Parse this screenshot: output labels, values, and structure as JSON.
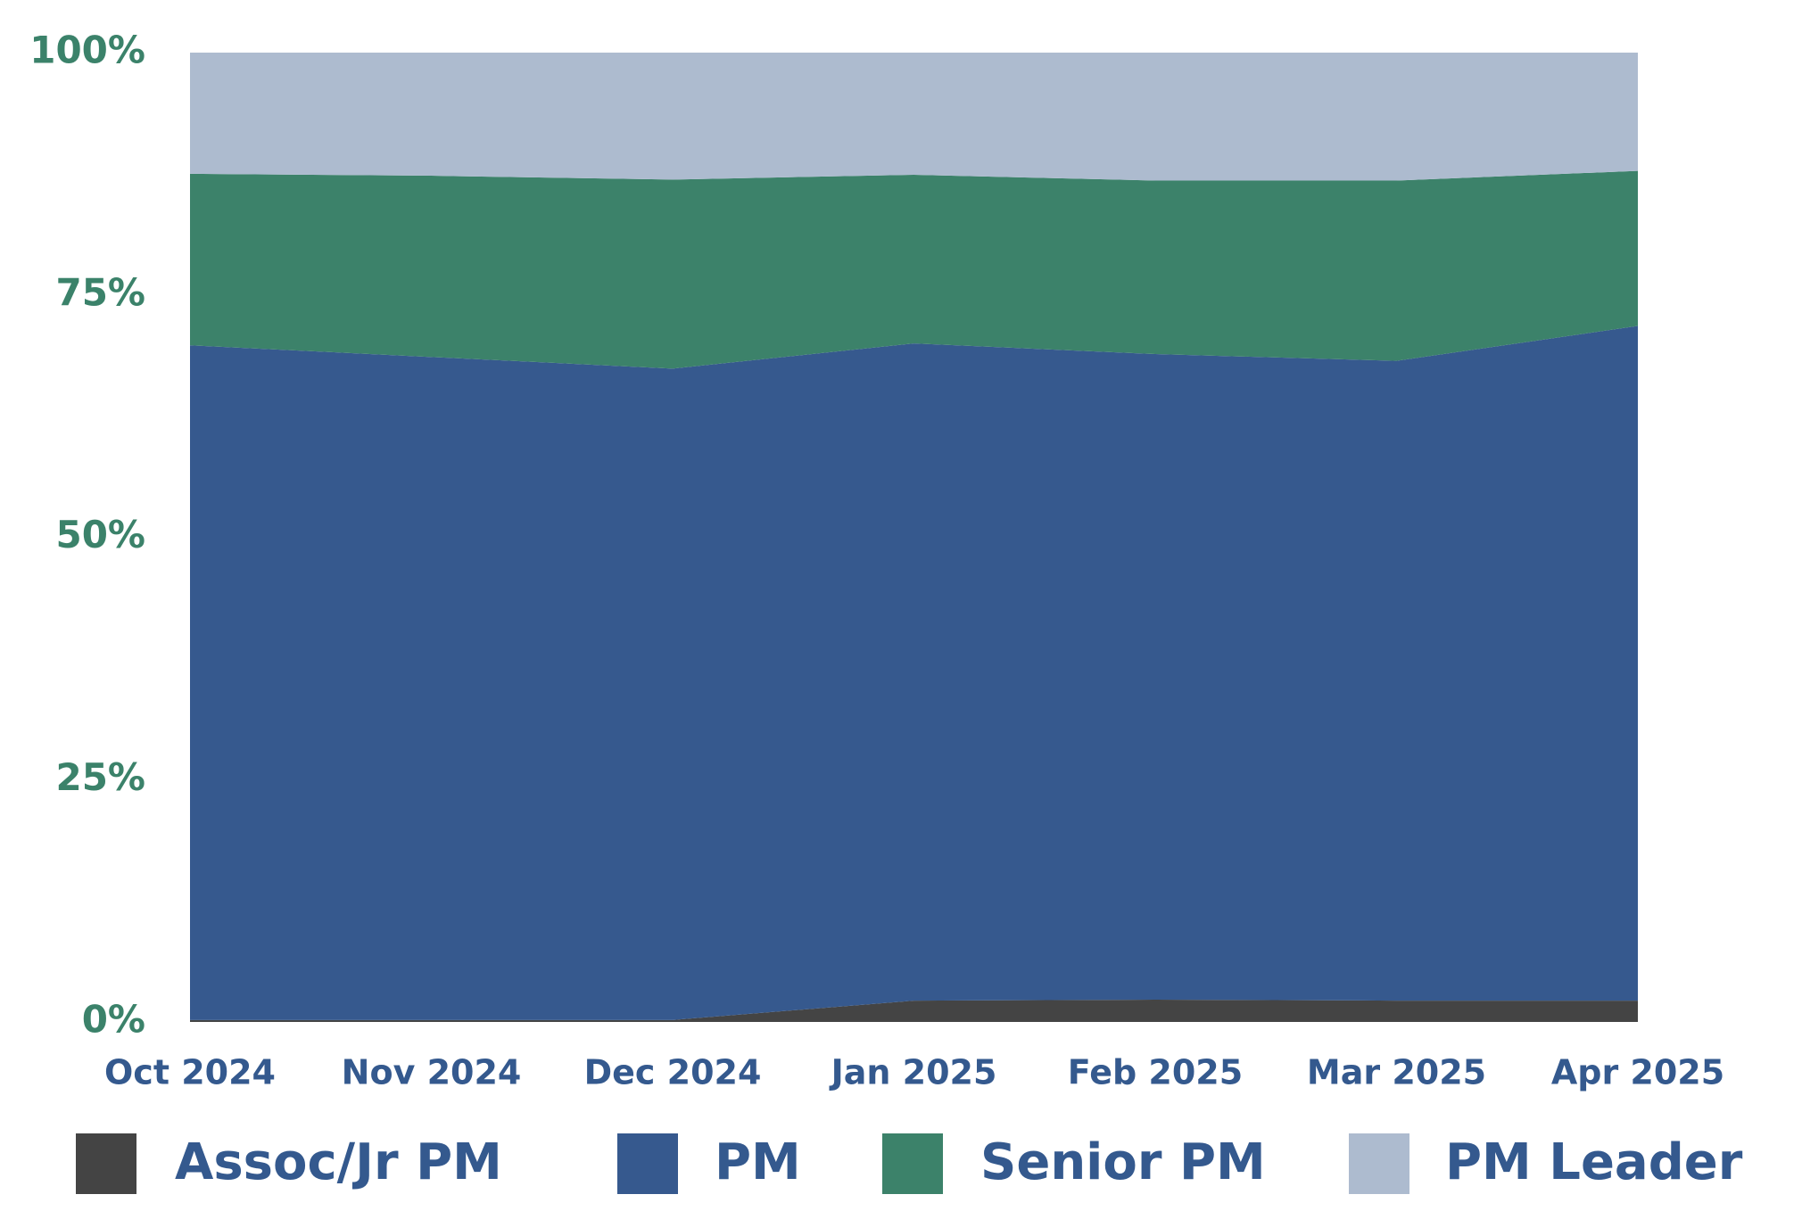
{
  "chart_data": {
    "type": "stacked_area",
    "categories": [
      "Oct 2024",
      "Nov 2024",
      "Dec 2024",
      "Jan 2025",
      "Feb 2025",
      "Mar 2025",
      "Apr 2025"
    ],
    "series": [
      {
        "name": "Assoc/Jr PM",
        "color": "#444444",
        "values": [
          0.2,
          0.2,
          0.2,
          2.2,
          2.3,
          2.2,
          2.2
        ]
      },
      {
        "name": "PM",
        "color": "#36598e",
        "values": [
          69.6,
          68.4,
          67.2,
          67.8,
          66.6,
          66.0,
          69.6
        ]
      },
      {
        "name": "Senior PM",
        "color": "#3c826a",
        "values": [
          17.7,
          18.7,
          19.5,
          17.4,
          17.9,
          18.6,
          16.0
        ]
      },
      {
        "name": "PM Leader",
        "color": "#adbbcf",
        "values": [
          12.5,
          12.7,
          13.1,
          12.6,
          13.2,
          13.2,
          12.2
        ]
      }
    ],
    "ylim": [
      0,
      100
    ],
    "yticks": [
      {
        "value": 0,
        "label": "0%"
      },
      {
        "value": 25,
        "label": "25%"
      },
      {
        "value": 50,
        "label": "50%"
      },
      {
        "value": 75,
        "label": "75%"
      },
      {
        "value": 100,
        "label": "100%"
      }
    ],
    "grid": false
  }
}
